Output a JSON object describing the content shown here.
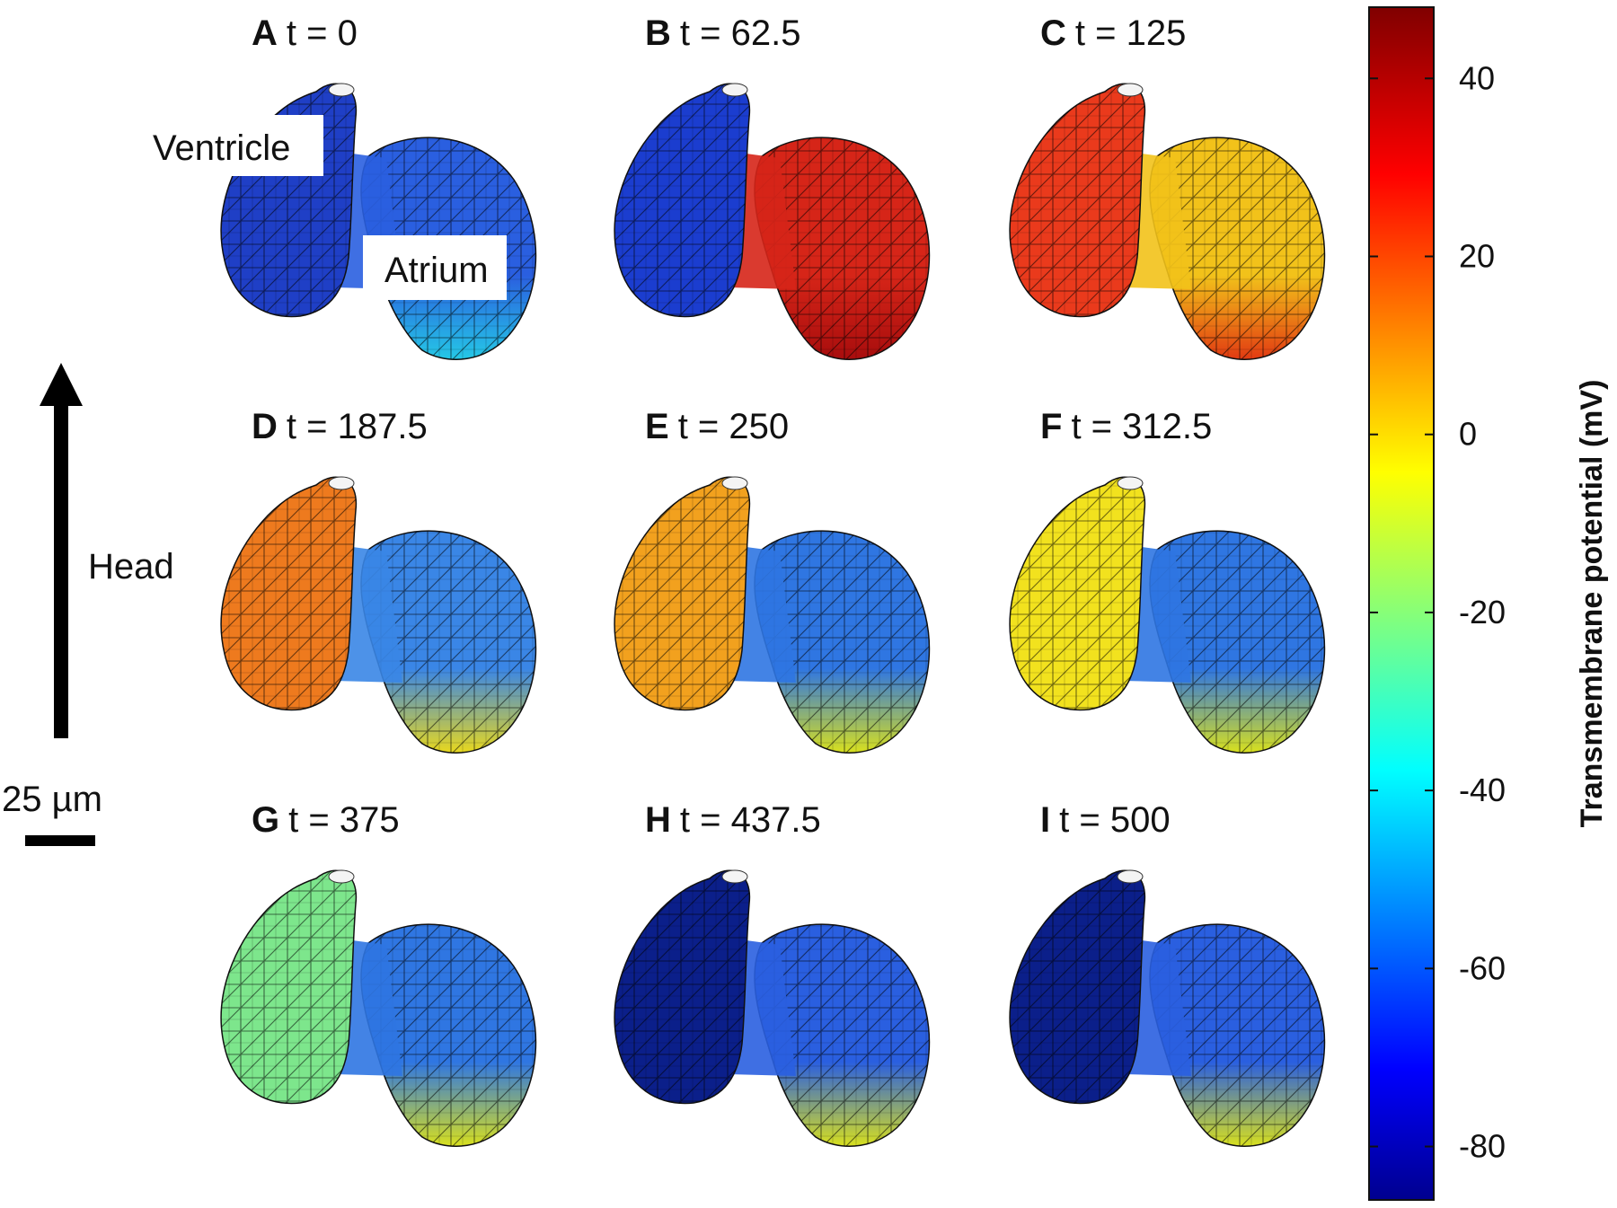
{
  "labels": {
    "ventricle": "Ventricle",
    "atrium": "Atrium",
    "head": "Head",
    "scale": "25 µm",
    "colorbar_title": "Transmembrane potential (mV)"
  },
  "colorbar": {
    "ticks": [
      "40",
      "20",
      "0",
      "-20",
      "-40",
      "-60",
      "-80"
    ],
    "tick_values": [
      40,
      20,
      0,
      -20,
      -40,
      -60,
      -80
    ],
    "min": -86,
    "max": 48,
    "colormap": "jet"
  },
  "panels": [
    {
      "letter": "A",
      "time": "t = 0",
      "ventricle_color": "#1f3fc6",
      "atrium_color": "#2a5fe0",
      "atrium_bottom_color": "#25c8e6"
    },
    {
      "letter": "B",
      "time": "t = 62.5",
      "ventricle_color": "#1b3dcf",
      "atrium_color": "#d62518",
      "atrium_bottom_color": "#a80d0d"
    },
    {
      "letter": "C",
      "time": "t = 125",
      "ventricle_color": "#ea3a1c",
      "atrium_color": "#f2c21a",
      "atrium_bottom_color": "#e23a12"
    },
    {
      "letter": "D",
      "time": "t = 187.5",
      "ventricle_color": "#ee7a1e",
      "atrium_color": "#3a86e6",
      "atrium_bottom_color": "#e8d81e"
    },
    {
      "letter": "E",
      "time": "t = 250",
      "ventricle_color": "#f2a11e",
      "atrium_color": "#2f76e2",
      "atrium_bottom_color": "#d8e01e"
    },
    {
      "letter": "F",
      "time": "t = 312.5",
      "ventricle_color": "#f2e21e",
      "atrium_color": "#2f76e2",
      "atrium_bottom_color": "#d8e01e"
    },
    {
      "letter": "G",
      "time": "t = 375",
      "ventricle_color": "#7de68c",
      "atrium_color": "#2f76e2",
      "atrium_bottom_color": "#d8e01e"
    },
    {
      "letter": "H",
      "time": "t = 437.5",
      "ventricle_color": "#0b1f8a",
      "atrium_color": "#2a5fe0",
      "atrium_bottom_color": "#d8e01e"
    },
    {
      "letter": "I",
      "time": "t = 500",
      "ventricle_color": "#0b1f8a",
      "atrium_color": "#2a5fe0",
      "atrium_bottom_color": "#d8e01e"
    }
  ]
}
